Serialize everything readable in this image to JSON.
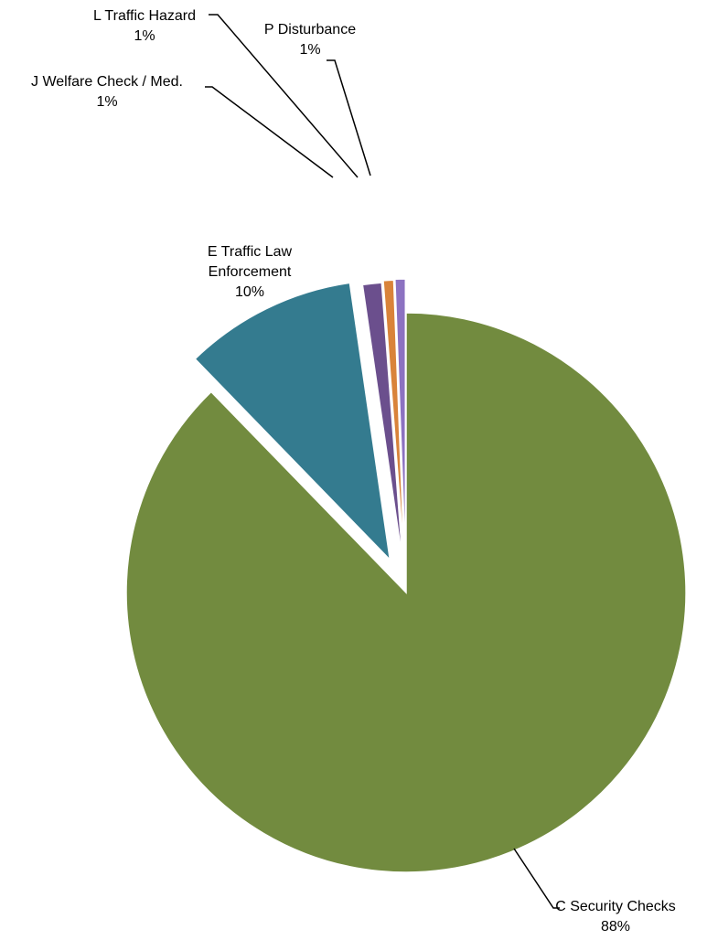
{
  "chart_data": {
    "type": "pie",
    "title": "",
    "legend": "none",
    "slices": [
      {
        "name": "C Security Checks",
        "value": 88,
        "percent_label": "88%",
        "color": "#728b3f",
        "label_lines": [
          "C Security Checks"
        ]
      },
      {
        "name": "E Traffic Law Enforcement",
        "value": 10,
        "percent_label": "10%",
        "color": "#347b8f",
        "label_lines": [
          "E Traffic Law",
          "Enforcement"
        ]
      },
      {
        "name": "J Welfare Check / Med.",
        "value": 1.1,
        "percent_label": "1%",
        "color": "#6b4f8d",
        "label_lines": [
          "J Welfare Check / Med."
        ]
      },
      {
        "name": "L Traffic Hazard",
        "value": 0.6,
        "percent_label": "1%",
        "color": "#d9833a",
        "label_lines": [
          "L Traffic Hazard"
        ]
      },
      {
        "name": "P Disturbance",
        "value": 0.6,
        "percent_label": "1%",
        "color": "#8c72c1",
        "label_lines": [
          "P Disturbance"
        ]
      }
    ]
  }
}
